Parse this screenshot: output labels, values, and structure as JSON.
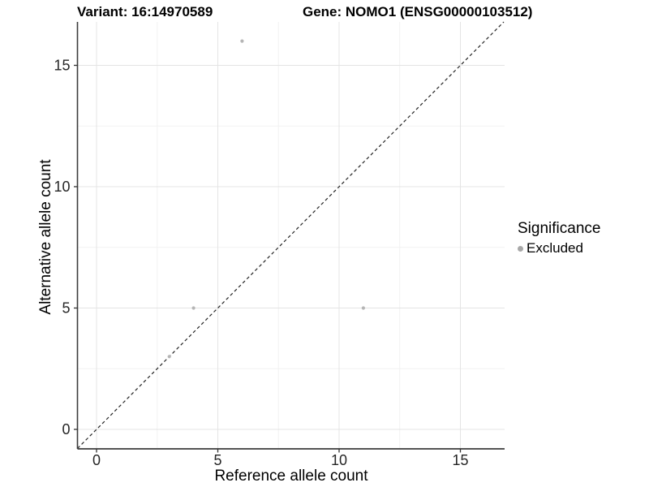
{
  "titles": {
    "variant": "Variant: 16:14970589",
    "gene": "Gene: NOMO1 (ENSG00000103512)"
  },
  "axes": {
    "x_label": "Reference allele count",
    "y_label": "Alternative allele count"
  },
  "legend": {
    "title": "Significance",
    "items": [
      {
        "label": "Excluded",
        "color": "#a8a8a8"
      }
    ]
  },
  "colors": {
    "background": "#ffffff",
    "grid_major": "#e4e4e4",
    "grid_minor": "#f2f2f2",
    "axis_line": "#3c3c3c",
    "tick_mark": "#333333",
    "tick_label": "#262626",
    "identity_line": "#222222",
    "point": "#b5b5b5"
  },
  "chart_data": {
    "type": "scatter",
    "title": "Variant: 16:14970589   Gene: NOMO1 (ENSG00000103512)",
    "xlabel": "Reference allele count",
    "ylabel": "Alternative allele count",
    "xlim": [
      -0.8,
      16.8
    ],
    "ylim": [
      -0.8,
      16.8
    ],
    "x_ticks": [
      0,
      5,
      10,
      15
    ],
    "y_ticks": [
      0,
      5,
      10,
      15
    ],
    "x_minor_ticks": [
      2.5,
      7.5,
      12.5
    ],
    "y_minor_ticks": [
      2.5,
      7.5,
      12.5
    ],
    "grid": true,
    "legend_position": "right",
    "series": [
      {
        "name": "Excluded",
        "color": "#b5b5b5",
        "points": [
          {
            "x": 3,
            "y": 3
          },
          {
            "x": 4,
            "y": 5
          },
          {
            "x": 11,
            "y": 5
          },
          {
            "x": 6,
            "y": 16
          }
        ]
      }
    ],
    "reference_line": {
      "kind": "identity",
      "slope": 1,
      "intercept": 0,
      "style": "dashed"
    }
  }
}
